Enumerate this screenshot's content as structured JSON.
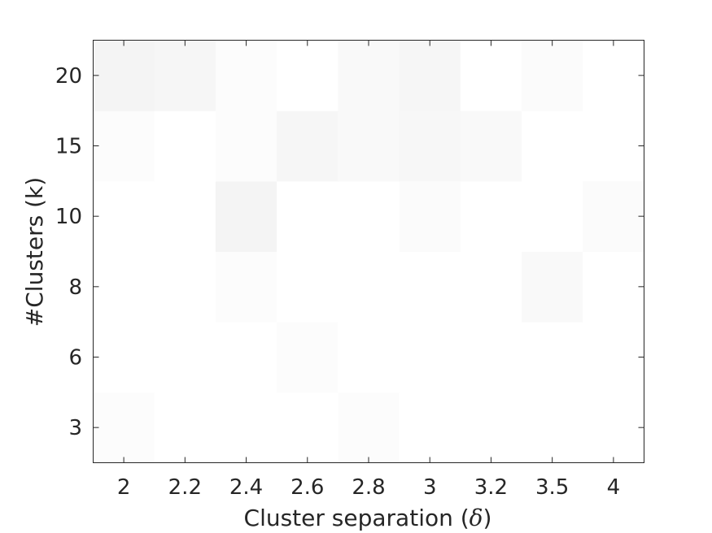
{
  "chart_data": {
    "type": "heatmap",
    "xlabel_prefix": "Cluster separation (",
    "xlabel_symbol": "δ",
    "xlabel_suffix": ")",
    "ylabel": "#Clusters (k)",
    "x_categories": [
      "2",
      "2.2",
      "2.4",
      "2.6",
      "2.8",
      "3",
      "3.2",
      "3.5",
      "4"
    ],
    "y_categories": [
      "3",
      "6",
      "8",
      "10",
      "15",
      "20"
    ],
    "color_range": [
      "#ffffff",
      "#ebebeb"
    ],
    "value_range": [
      0,
      1
    ],
    "values": [
      [
        0.14,
        0.0,
        0.0,
        0.0,
        0.14,
        0.0,
        0.0,
        0.0,
        0.0
      ],
      [
        0.0,
        0.0,
        0.0,
        0.14,
        0.0,
        0.0,
        0.0,
        0.0,
        0.0
      ],
      [
        0.0,
        0.0,
        0.14,
        0.0,
        0.0,
        0.0,
        0.0,
        0.29,
        0.0
      ],
      [
        0.0,
        0.0,
        0.57,
        0.0,
        0.0,
        0.2,
        0.0,
        0.0,
        0.2
      ],
      [
        0.14,
        0.0,
        0.14,
        0.43,
        0.29,
        0.4,
        0.29,
        0.0,
        0.0
      ],
      [
        0.57,
        0.43,
        0.14,
        0.0,
        0.29,
        0.43,
        0.0,
        0.2,
        0.0
      ]
    ],
    "grid": false,
    "legend": "none"
  }
}
